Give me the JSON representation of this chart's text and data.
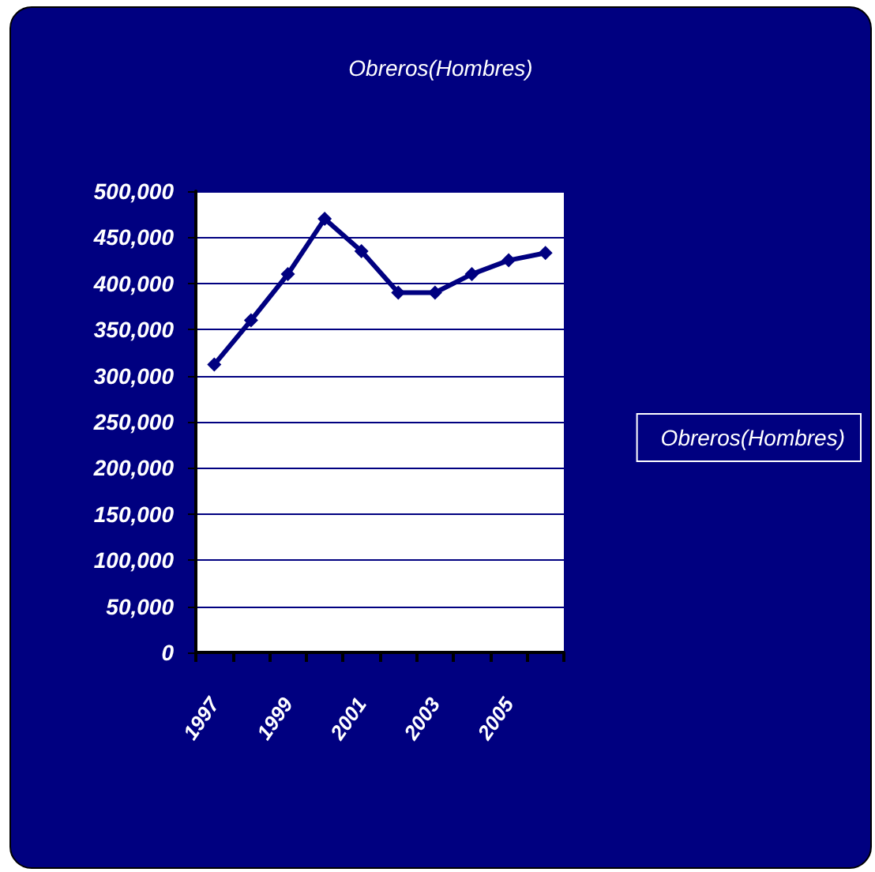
{
  "chart_data": {
    "type": "line",
    "title": "Obreros(Hombres)",
    "categories": [
      "1997",
      null,
      "1999",
      null,
      "2001",
      null,
      "2003",
      null,
      "2005",
      null
    ],
    "series": [
      {
        "name": "Obreros(Hombres)",
        "color": "#000080",
        "values": [
          312000,
          360000,
          410000,
          470000,
          435000,
          390000,
          390000,
          410000,
          425000,
          433000
        ]
      }
    ],
    "ylim": [
      0,
      500000
    ],
    "yticks": [
      {
        "value": 0,
        "label": "0"
      },
      {
        "value": 50000,
        "label": "50,000"
      },
      {
        "value": 100000,
        "label": "100,000"
      },
      {
        "value": 150000,
        "label": "150,000"
      },
      {
        "value": 200000,
        "label": "200,000"
      },
      {
        "value": 250000,
        "label": "250,000"
      },
      {
        "value": 300000,
        "label": "300,000"
      },
      {
        "value": 350000,
        "label": "350,000"
      },
      {
        "value": 400000,
        "label": "400,000"
      },
      {
        "value": 450000,
        "label": "450,000"
      },
      {
        "value": 500000,
        "label": "500,000"
      }
    ],
    "grid": "y",
    "legend": "right",
    "marker": "diamond",
    "line_style": "solid"
  }
}
